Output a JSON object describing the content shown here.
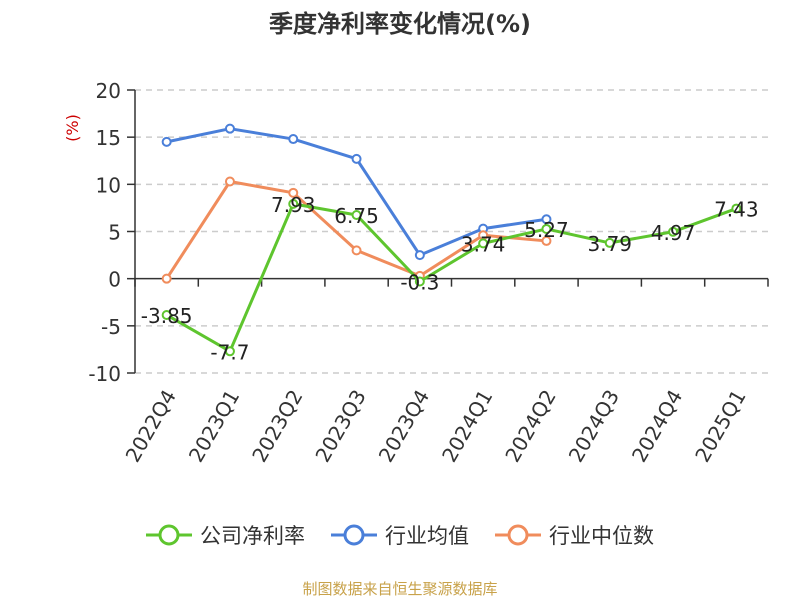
{
  "title": "季度净利率变化情况(%)",
  "source": "制图数据来自恒生聚源数据库",
  "chart_data": {
    "type": "line",
    "ylabel": "(%)",
    "ylim": [
      -10,
      20
    ],
    "yticks": [
      20,
      15,
      10,
      5,
      0,
      -5,
      -10
    ],
    "grid": true,
    "legend_position": "bottom",
    "categories": [
      "2022Q4",
      "2023Q1",
      "2023Q2",
      "2023Q3",
      "2023Q4",
      "2024Q1",
      "2024Q2",
      "2024Q3",
      "2024Q4",
      "2025Q1"
    ],
    "series": [
      {
        "name": "公司净利率",
        "color": "#5ec52e",
        "values": [
          -3.85,
          -7.7,
          7.93,
          6.75,
          -0.3,
          3.74,
          5.27,
          3.79,
          4.97,
          7.43
        ],
        "labels": [
          "-3.85",
          "-7.7",
          "7.93",
          "6.75",
          "-0.3",
          "3.74",
          "5.27",
          "3.79",
          "4.97",
          "7.43"
        ]
      },
      {
        "name": "行业均值",
        "color": "#4a7fd9",
        "values": [
          14.5,
          15.9,
          14.8,
          12.7,
          2.5,
          5.3,
          6.3,
          null,
          null,
          null
        ]
      },
      {
        "name": "行业中位数",
        "color": "#f08c5c",
        "values": [
          0.0,
          10.3,
          9.1,
          3.0,
          0.3,
          4.6,
          4.0,
          null,
          null,
          null
        ]
      }
    ]
  }
}
